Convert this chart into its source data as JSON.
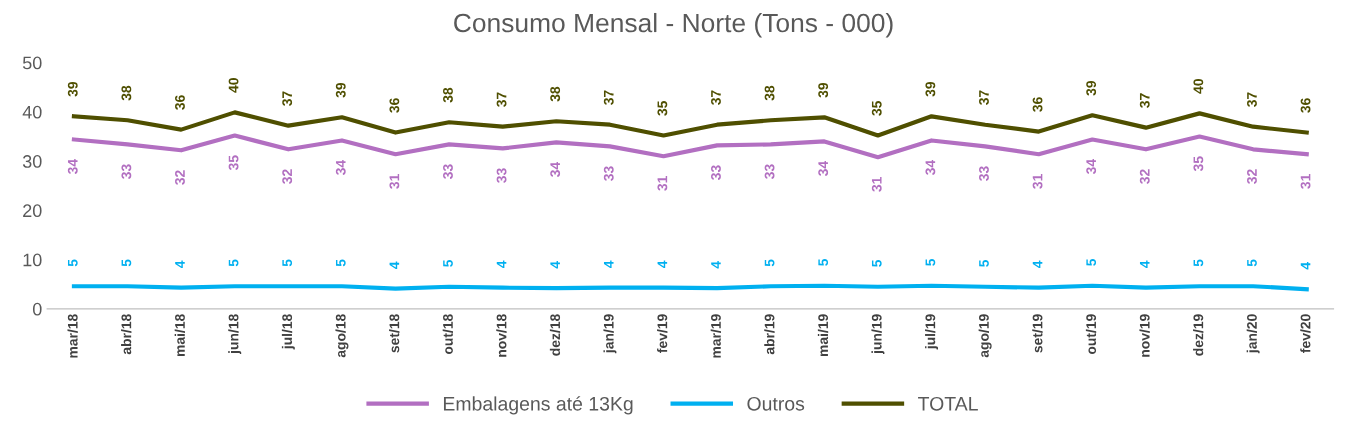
{
  "chart_data": {
    "type": "line",
    "title": "Consumo Mensal - Norte (Tons - 000)",
    "categories": [
      "mar/18",
      "abr/18",
      "mai/18",
      "jun/18",
      "jul/18",
      "ago/18",
      "set/18",
      "out/18",
      "nov/18",
      "dez/18",
      "jan/19",
      "fev/19",
      "mar/19",
      "abr/19",
      "mai/19",
      "jun/19",
      "jul/19",
      "ago/19",
      "set/19",
      "out/19",
      "nov/19",
      "dez/19",
      "jan/20",
      "fev/20"
    ],
    "series": [
      {
        "name": "Embalagens até 13Kg",
        "color": "#b26fc1",
        "values": [
          34.4,
          33.4,
          32.2,
          35.2,
          32.4,
          34.2,
          31.4,
          33.4,
          32.6,
          33.8,
          33.0,
          31.0,
          33.2,
          33.4,
          34.0,
          30.8,
          34.2,
          33.0,
          31.4,
          34.4,
          32.4,
          35.0,
          32.4,
          31.4
        ],
        "value_labels": [
          "34",
          "33",
          "32",
          "35",
          "32",
          "34",
          "31",
          "33",
          "33",
          "34",
          "33",
          "31",
          "33",
          "33",
          "34",
          "31",
          "34",
          "33",
          "31",
          "34",
          "32",
          "35",
          "32",
          "31"
        ]
      },
      {
        "name": "Outros",
        "color": "#00b0f0",
        "values": [
          4.6,
          4.6,
          4.3,
          4.6,
          4.6,
          4.6,
          4.1,
          4.5,
          4.3,
          4.2,
          4.3,
          4.3,
          4.2,
          4.6,
          4.7,
          4.5,
          4.7,
          4.5,
          4.3,
          4.7,
          4.3,
          4.6,
          4.6,
          4.0
        ],
        "value_labels": [
          "5",
          "5",
          "4",
          "5",
          "5",
          "5",
          "4",
          "5",
          "4",
          "4",
          "4",
          "4",
          "4",
          "5",
          "5",
          "5",
          "5",
          "5",
          "4",
          "5",
          "4",
          "5",
          "5",
          "4"
        ]
      },
      {
        "name": "TOTAL",
        "color": "#4f4f00",
        "values": [
          39.1,
          38.3,
          36.4,
          39.9,
          37.2,
          38.9,
          35.8,
          37.9,
          37.0,
          38.1,
          37.4,
          35.2,
          37.4,
          38.3,
          38.9,
          35.2,
          39.1,
          37.4,
          36.0,
          39.3,
          36.8,
          39.7,
          37.0,
          35.8
        ],
        "value_labels": [
          "39",
          "38",
          "36",
          "40",
          "37",
          "39",
          "36",
          "38",
          "37",
          "38",
          "37",
          "35",
          "37",
          "38",
          "39",
          "35",
          "39",
          "37",
          "36",
          "39",
          "37",
          "40",
          "37",
          "36"
        ]
      }
    ],
    "ylim": [
      0,
      50
    ],
    "yticks": [
      0,
      10,
      20,
      30,
      40,
      50
    ],
    "grid": false,
    "legend": "bottom",
    "marker": "none",
    "line_style": "solid"
  }
}
